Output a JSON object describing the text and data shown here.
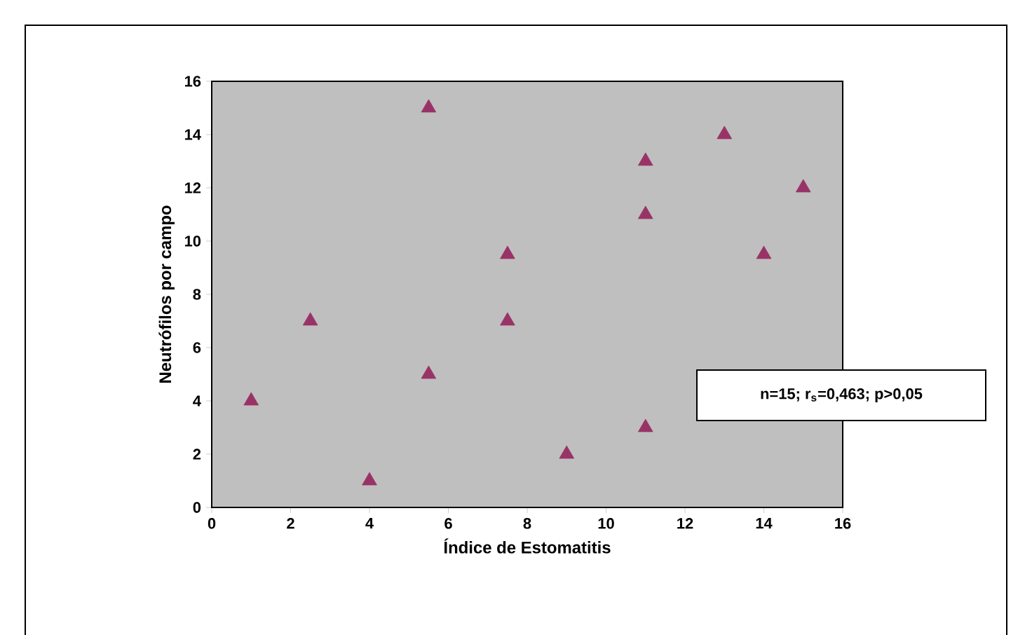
{
  "chart_data": {
    "type": "scatter",
    "xlabel": "Índice de Estomatitis",
    "ylabel": "Neutrófilos por campo",
    "x": [
      1,
      2.5,
      4,
      5.5,
      5.5,
      7.5,
      7.5,
      9,
      11,
      11,
      11,
      13,
      14,
      15
    ],
    "values": [
      4,
      7,
      1,
      15,
      5,
      9.5,
      7,
      2,
      13,
      11,
      3,
      14,
      9.5,
      12
    ],
    "color": "#993366",
    "marker": "triangle",
    "xlim": [
      0,
      16
    ],
    "ylim": [
      0,
      16
    ],
    "xticks": [
      0,
      2,
      4,
      6,
      8,
      10,
      12,
      14,
      16
    ],
    "yticks": [
      0,
      2,
      4,
      6,
      8,
      10,
      12,
      14,
      16
    ],
    "annotations": [
      "n=15; r$_{s}$=0,463; p>0,05"
    ]
  }
}
